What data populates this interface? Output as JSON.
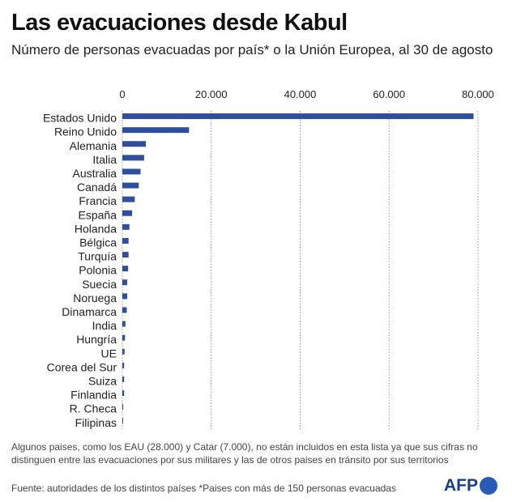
{
  "chart_data": {
    "type": "bar",
    "orientation": "horizontal",
    "title": "Las evacuaciones desde Kabul",
    "subtitle": "Número de personas evacuadas por país* o la Unión Europea, al 30 de agosto",
    "categories": [
      "Estados Unido",
      "Reino Unido",
      "Alemania",
      "Italia",
      "Australia",
      "Canadá",
      "Francia",
      "España",
      "Holanda",
      "Bélgica",
      "Turquía",
      "Polonia",
      "Suecia",
      "Noruega",
      "Dinamarca",
      "India",
      "Hungría",
      "UE",
      "Corea del Sur",
      "Suiza",
      "Finlandia",
      "R. Checa",
      "Filipinas"
    ],
    "values": [
      79000,
      15000,
      5300,
      4900,
      4100,
      3700,
      2800,
      2200,
      1600,
      1400,
      1400,
      1300,
      1100,
      1100,
      1000,
      700,
      600,
      500,
      400,
      400,
      400,
      200,
      150
    ],
    "xlim": [
      0,
      80000
    ],
    "xticks": [
      0,
      20000,
      40000,
      60000,
      80000
    ],
    "xtick_labels": [
      "0",
      "20.000",
      "40.000",
      "60.000",
      "80.000"
    ],
    "grid": "vertical dotted",
    "bar_color": "#2f4f9e"
  },
  "note": "Algunos paises, como los EAU (28.000) y Catar (7.000), no están incluidos en esta lista ya que sus cifras no distinguen entre las evacuaciones por sus militares y las de otros paises en tránsito por sus territorios",
  "source": "Fuente: autoridades de los distintos países   *Paises con más de 150 personas evacuadas",
  "logo": "AFP"
}
